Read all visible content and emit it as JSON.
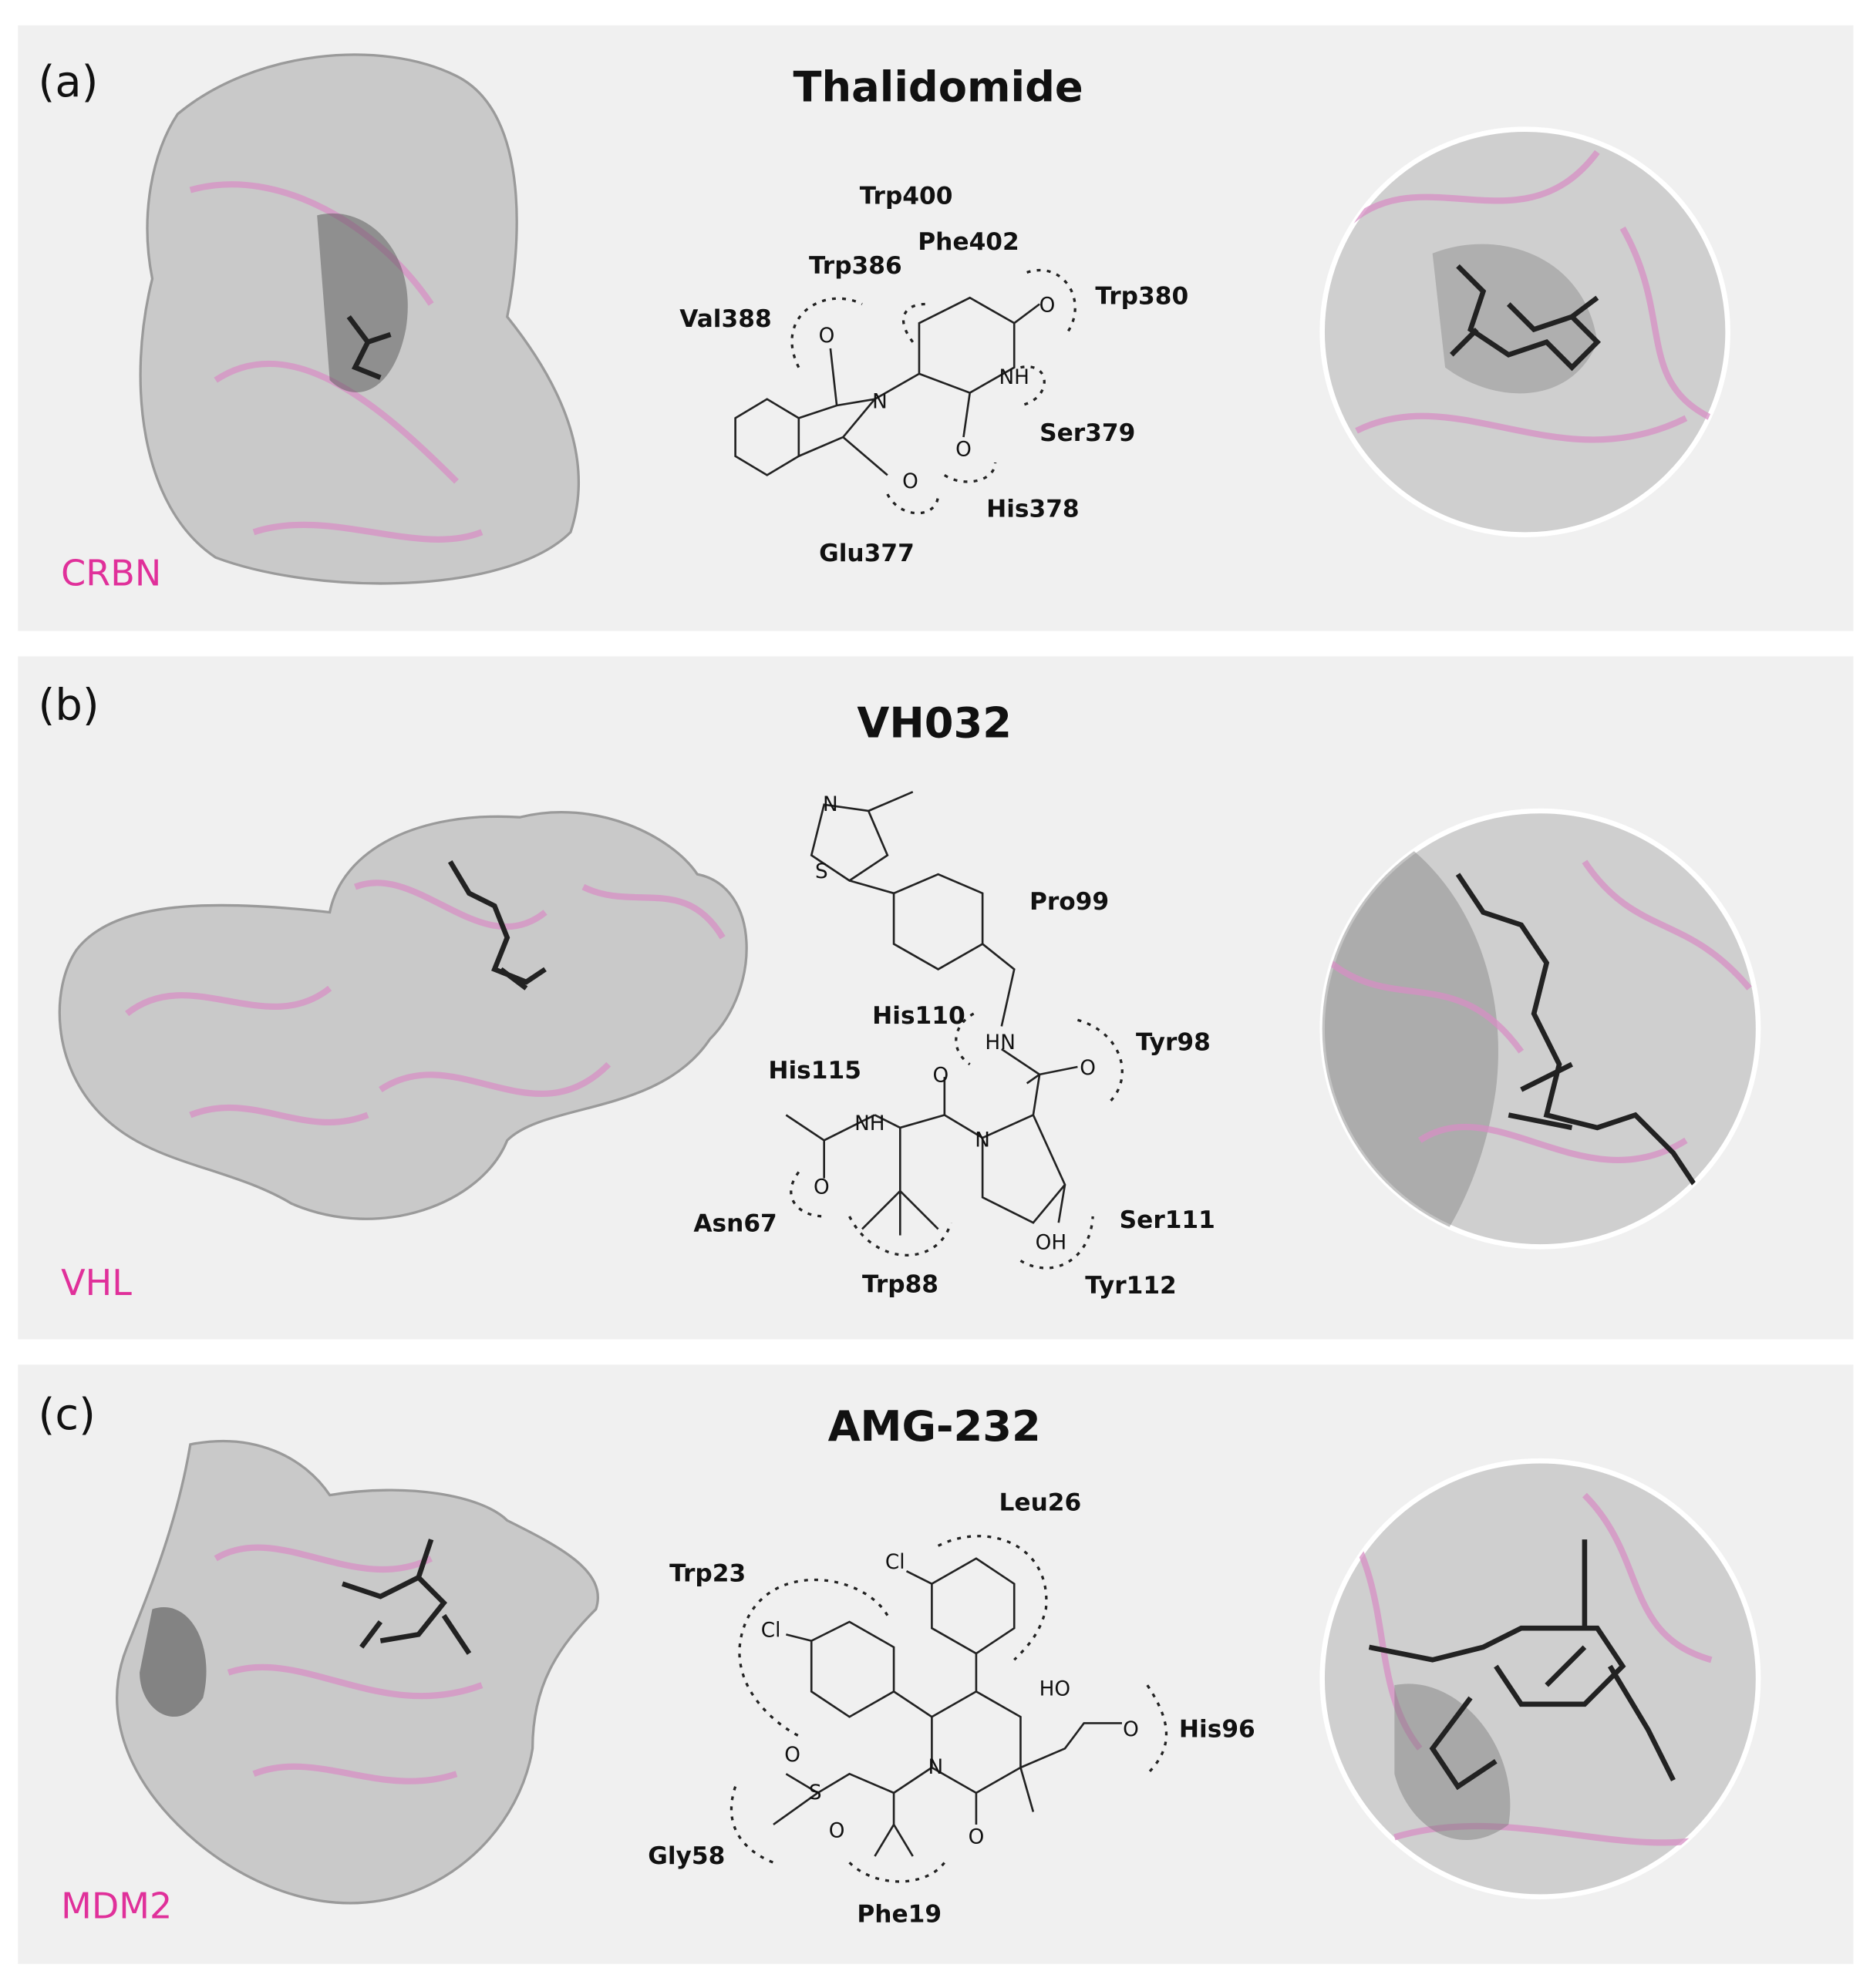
{
  "colors": {
    "panel_background": "#f0f0f0",
    "protein_label": "#e0309a",
    "ribbon": "#d78fc4",
    "surface": "#c9c9c9",
    "ligand": "#222222"
  },
  "panels": [
    {
      "letter": "(a)",
      "title": "Thalidomide",
      "protein": "CRBN",
      "residues": [
        "Trp400",
        "Phe402",
        "Trp386",
        "Trp380",
        "Val388",
        "Ser379",
        "His378",
        "Glu377"
      ],
      "atoms": [
        "O",
        "N",
        "O",
        "O",
        "NH",
        "O"
      ]
    },
    {
      "letter": "(b)",
      "title": "VH032",
      "protein": "VHL",
      "residues": [
        "Pro99",
        "His110",
        "Tyr98",
        "His115",
        "Asn67",
        "Ser111",
        "Trp88",
        "Tyr112"
      ],
      "atoms": [
        "N",
        "S",
        "HN",
        "O",
        "O",
        "NH",
        "N",
        "O",
        "OH"
      ]
    },
    {
      "letter": "(c)",
      "title": "AMG-232",
      "protein": "MDM2",
      "residues": [
        "Leu26",
        "Trp23",
        "His96",
        "Gly58",
        "Phe19"
      ],
      "atoms": [
        "Cl",
        "Cl",
        "HO",
        "O",
        "N",
        "O",
        "S",
        "O",
        "O"
      ]
    }
  ]
}
